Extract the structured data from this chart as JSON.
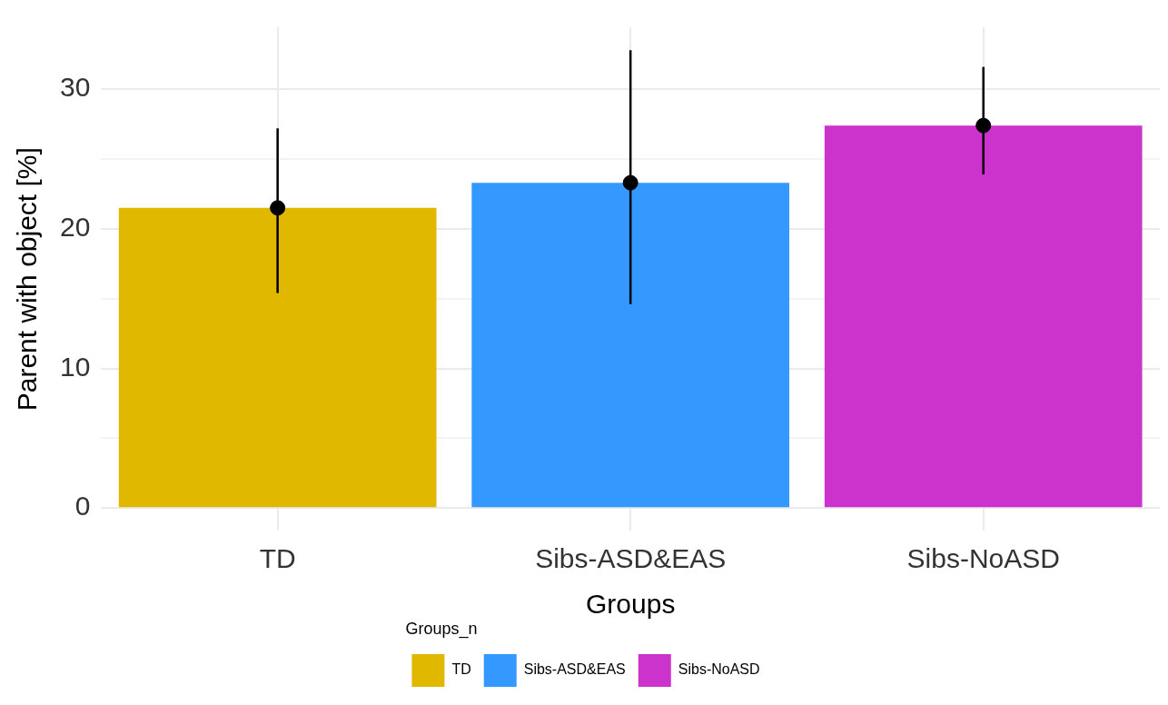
{
  "chart_data": {
    "type": "bar",
    "xlabel": "Groups",
    "ylabel": "Parent with object [%]",
    "legend_title": "Groups_n",
    "categories": [
      "TD",
      "Sibs-ASD&EAS",
      "Sibs-NoASD"
    ],
    "series": [
      {
        "name": "TD",
        "color": "#e0b800",
        "values": [
          21.5,
          null,
          null
        ]
      },
      {
        "name": "Sibs-ASD&EAS",
        "color": "#3399ff",
        "values": [
          null,
          23.3,
          null
        ]
      },
      {
        "name": "Sibs-NoASD",
        "color": "#cc33cc",
        "values": [
          null,
          null,
          27.4
        ]
      },
      {
        "type": "scatter",
        "color": "#000000",
        "x": [
          "TD",
          "Sibs-ASD&EAS",
          "Sibs-NoASD"
        ],
        "values": [
          21.5,
          23.3,
          27.4
        ],
        "errors": [
          [
            15.4,
            27.2
          ],
          [
            14.6,
            32.8
          ],
          [
            23.9,
            31.6
          ]
        ]
      }
    ],
    "ylim": [
      -1.64,
      34.44
    ],
    "yticks": [
      0,
      {
        "value": 5,
        "label": null
      },
      10,
      {
        "value": 15,
        "label": null
      },
      20,
      {
        "value": 25,
        "label": null
      },
      30
    ],
    "grid": true,
    "legend": "bottom",
    "marker": "circle"
  }
}
